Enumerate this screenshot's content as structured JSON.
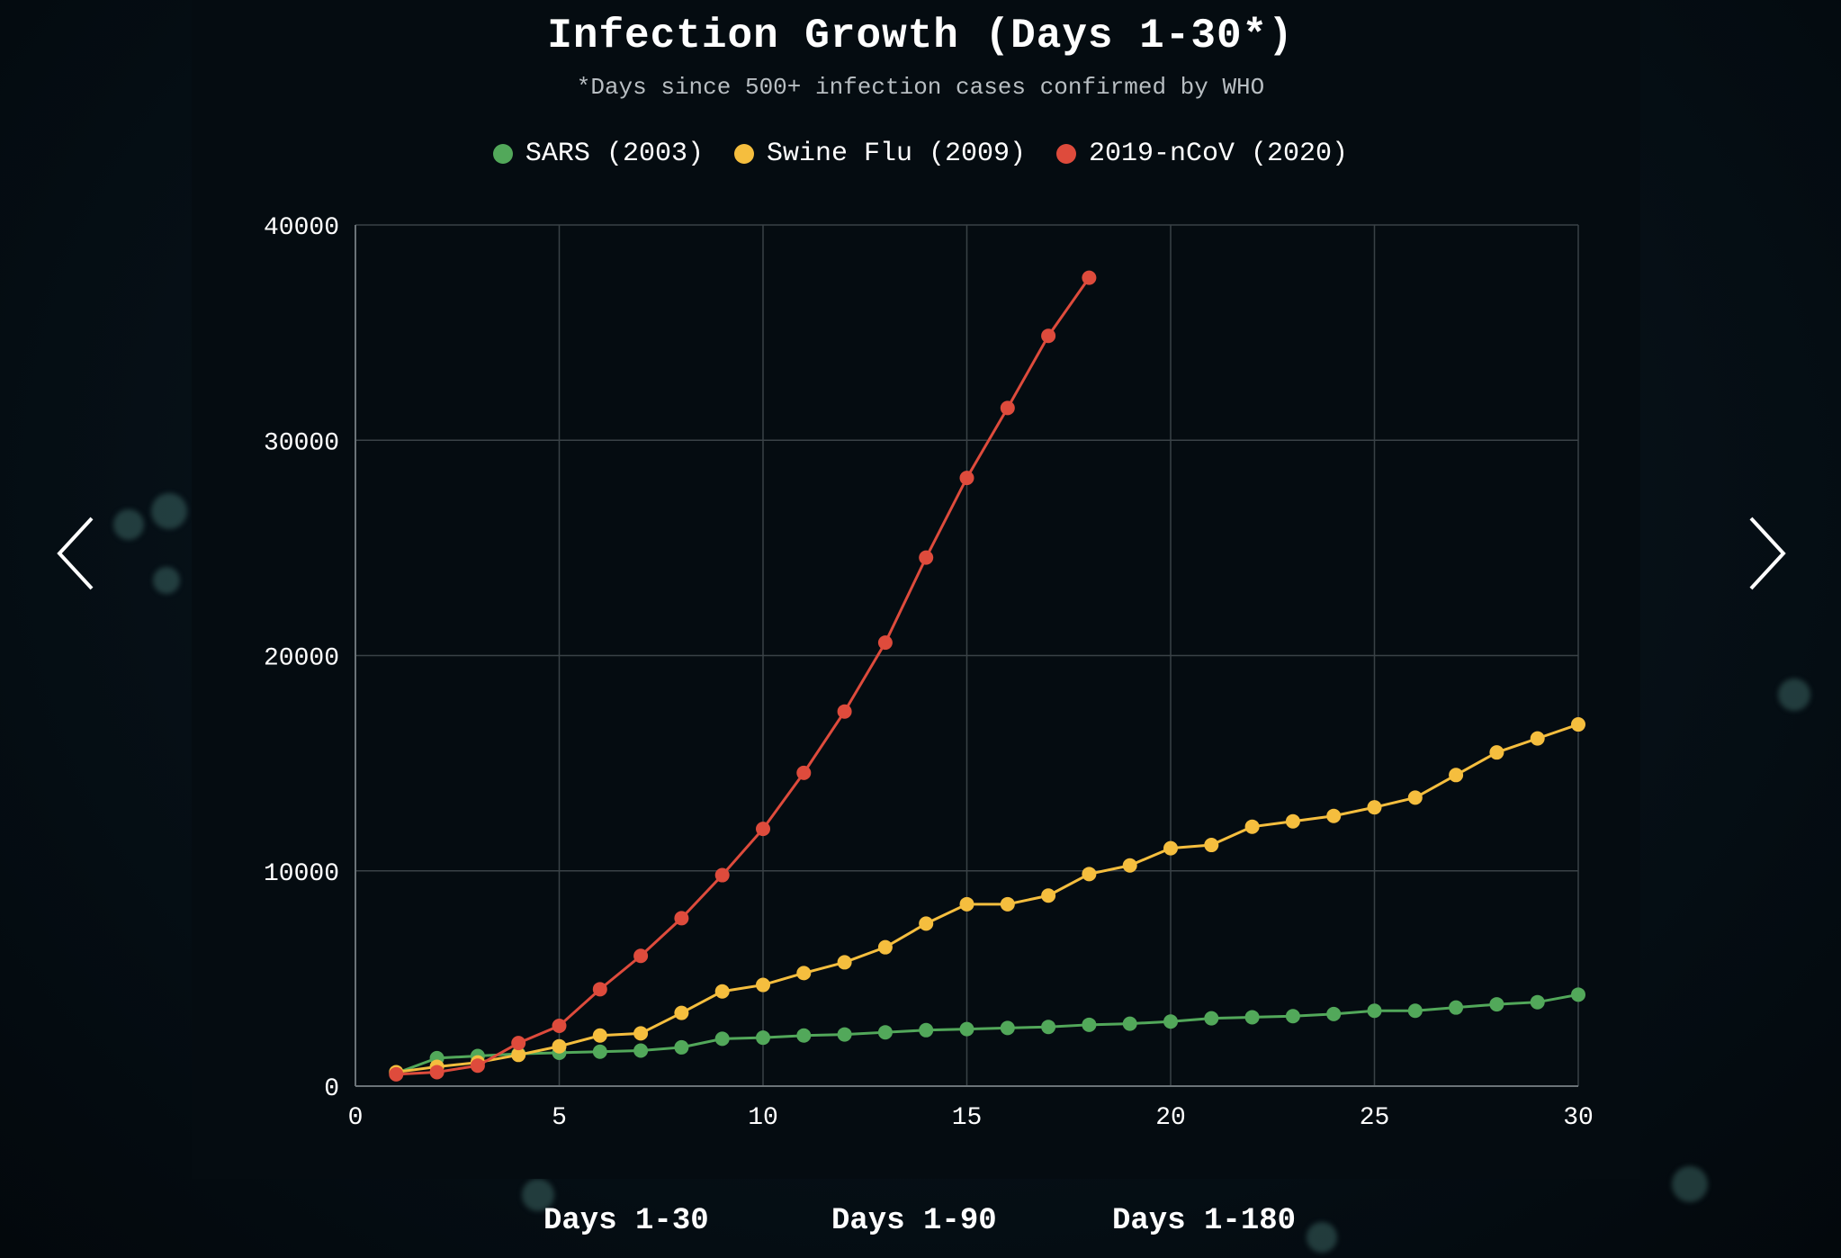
{
  "chart_data": {
    "type": "line",
    "title": "Infection Growth (Days 1-30*)",
    "subtitle": "*Days since 500+ infection cases confirmed by WHO",
    "xlabel": "",
    "ylabel": "",
    "xlim": [
      0,
      30
    ],
    "ylim": [
      0,
      40000
    ],
    "x_ticks": [
      0,
      5,
      10,
      15,
      20,
      25,
      30
    ],
    "y_ticks": [
      0,
      10000,
      20000,
      30000,
      40000
    ],
    "grid": true,
    "legend_position": "top-center",
    "series": [
      {
        "name": "SARS (2003)",
        "color": "#52a85a",
        "x": [
          1,
          2,
          3,
          4,
          5,
          6,
          7,
          8,
          9,
          10,
          11,
          12,
          13,
          14,
          15,
          16,
          17,
          18,
          19,
          20,
          21,
          22,
          23,
          24,
          25,
          26,
          27,
          28,
          29,
          30
        ],
        "values": [
          600,
          1300,
          1400,
          1500,
          1550,
          1600,
          1650,
          1800,
          2200,
          2250,
          2350,
          2400,
          2500,
          2600,
          2650,
          2700,
          2750,
          2850,
          2900,
          3000,
          3150,
          3200,
          3250,
          3350,
          3500,
          3500,
          3650,
          3800,
          3900,
          4250
        ]
      },
      {
        "name": "Swine Flu (2009)",
        "color": "#f5be3e",
        "x": [
          1,
          2,
          3,
          4,
          5,
          6,
          7,
          8,
          9,
          10,
          11,
          12,
          13,
          14,
          15,
          16,
          17,
          18,
          19,
          20,
          21,
          22,
          23,
          24,
          25,
          26,
          27,
          28,
          29,
          30
        ],
        "values": [
          650,
          900,
          1100,
          1450,
          1850,
          2350,
          2450,
          3400,
          4400,
          4700,
          5250,
          5750,
          6450,
          7550,
          8450,
          8450,
          8850,
          9850,
          10250,
          11050,
          11200,
          12050,
          12300,
          12550,
          12950,
          13400,
          14450,
          15500,
          16150,
          16800
        ]
      },
      {
        "name": "2019-nCoV (2020)",
        "color": "#de4b3c",
        "x": [
          1,
          2,
          3,
          4,
          5,
          6,
          7,
          8,
          9,
          10,
          11,
          12,
          13,
          14,
          15,
          16,
          17,
          18
        ],
        "values": [
          550,
          650,
          950,
          2000,
          2800,
          4500,
          6050,
          7800,
          9800,
          11950,
          14550,
          17400,
          20600,
          24550,
          28250,
          31500,
          34850,
          37550
        ]
      }
    ]
  },
  "navigation": {
    "prev_label": "Previous chart",
    "next_label": "Next chart"
  },
  "tabs": [
    "Days 1-30",
    "Days 1-90",
    "Days 1-180"
  ],
  "colors": {
    "grid": "#3a4247",
    "axis": "#6b7378",
    "tick_text": "#ffffff"
  }
}
